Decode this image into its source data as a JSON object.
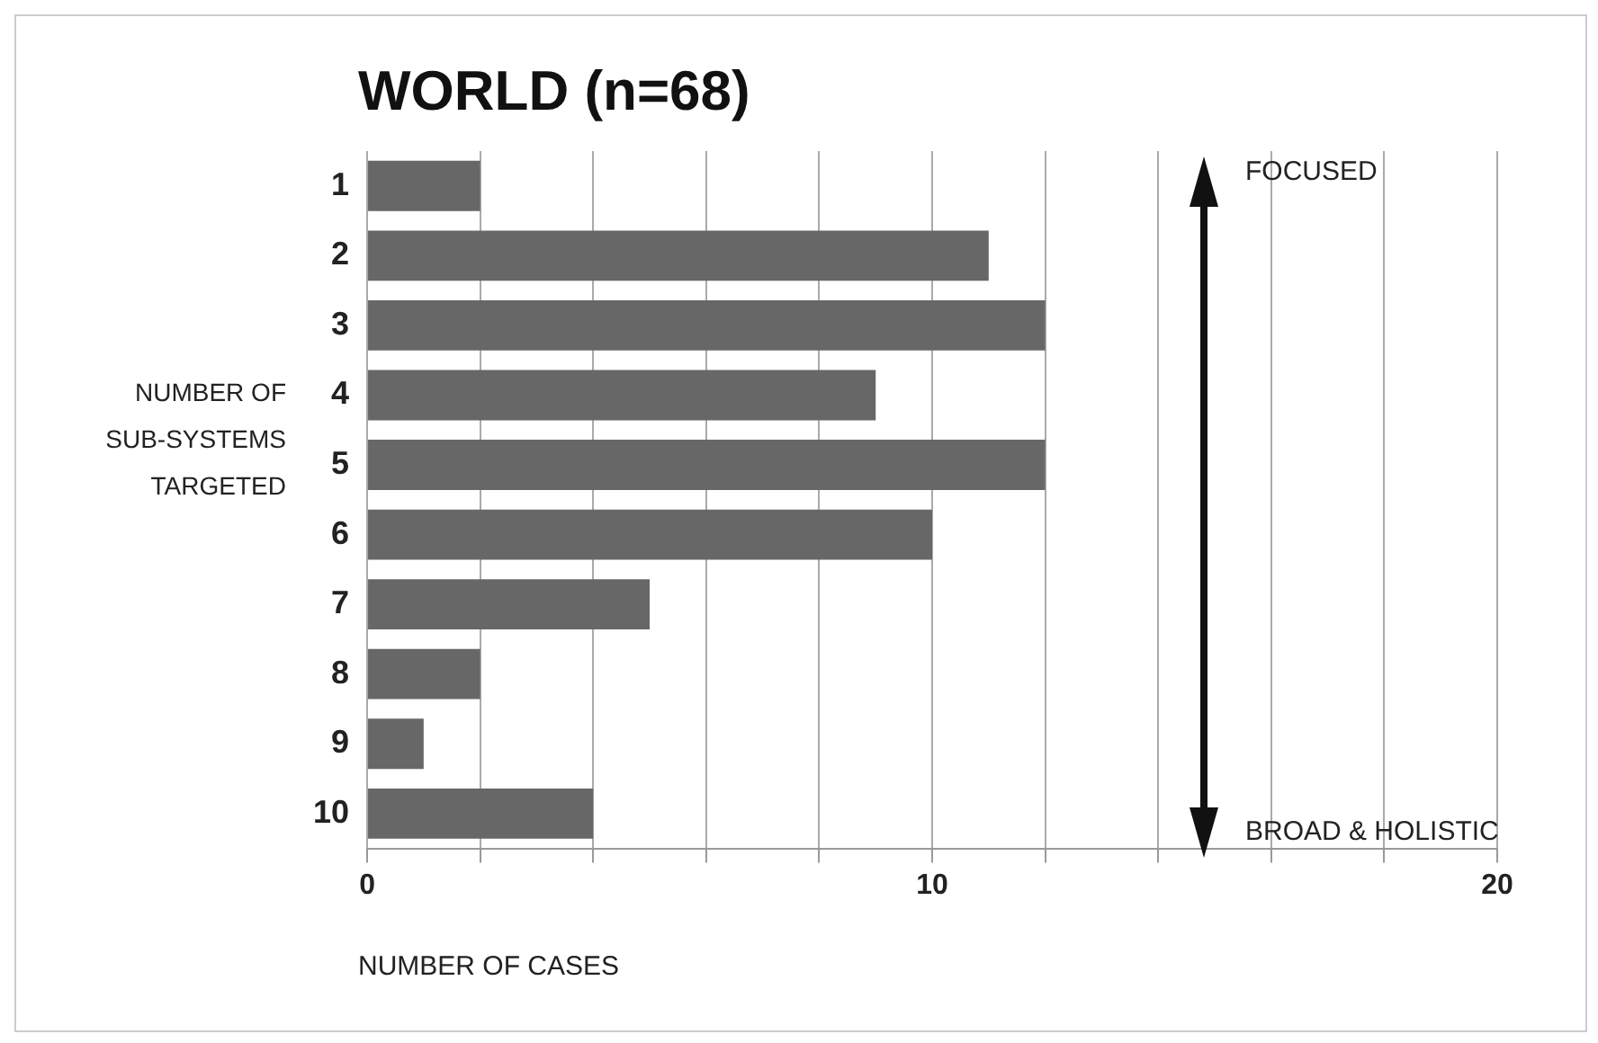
{
  "chart_data": {
    "type": "bar",
    "orientation": "horizontal",
    "title": "WORLD (n=68)",
    "ylabel": "NUMBER OF SUB-SYSTEMS TARGETED",
    "xlabel": "NUMBER OF CASES",
    "categories": [
      "1",
      "2",
      "3",
      "4",
      "5",
      "6",
      "7",
      "8",
      "9",
      "10"
    ],
    "values": [
      2,
      11,
      12,
      9,
      12,
      10,
      5,
      2,
      1,
      4
    ],
    "color": "#676767",
    "xlim": [
      0,
      20
    ],
    "xticks": [
      0,
      {
        "value": 2,
        "label": null
      },
      {
        "value": 4,
        "label": null
      },
      {
        "value": 6,
        "label": null
      },
      {
        "value": 8,
        "label": null
      },
      10,
      {
        "value": 12,
        "label": null
      },
      {
        "value": 14,
        "label": null
      },
      {
        "value": 16,
        "label": null
      },
      {
        "value": 18,
        "label": null
      },
      20
    ],
    "grid": "x",
    "legend": false,
    "annotations": [
      "FOCUSED",
      "BROAD & HOLISTIC"
    ]
  }
}
